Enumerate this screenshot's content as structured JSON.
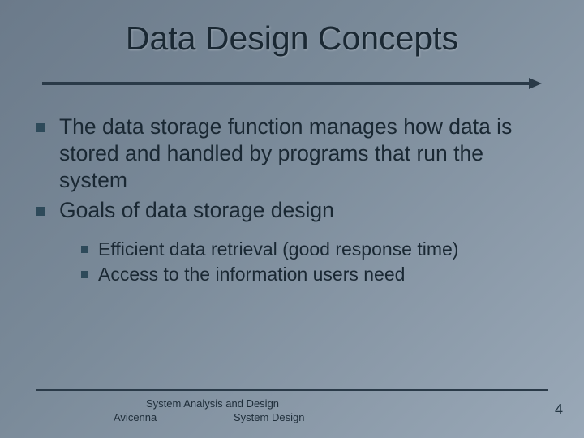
{
  "slide": {
    "title": "Data Design Concepts",
    "bullets": [
      {
        "text": "The data storage function manages how data is stored and handled by programs that run the system"
      },
      {
        "text": "Goals of data storage design",
        "children": [
          {
            "text": "Efficient data retrieval (good response time)"
          },
          {
            "text": "Access to the information users need"
          }
        ]
      }
    ],
    "footer": {
      "left": "Avicenna",
      "mid_line1": "System Analysis and Design",
      "mid_line2": "System Design",
      "page": "4"
    }
  },
  "style": {
    "background_gradient": [
      "#6b7a8a",
      "#9aa9b8"
    ],
    "title_fontsize": 41,
    "body_fontsize_l1": 26.5,
    "body_fontsize_l2": 23,
    "bullet_color": "#2e4a5a",
    "text_color": "#1a2833",
    "rule_color": "#2a3a48",
    "footer_fontsize": 13,
    "page_fontsize": 18
  }
}
